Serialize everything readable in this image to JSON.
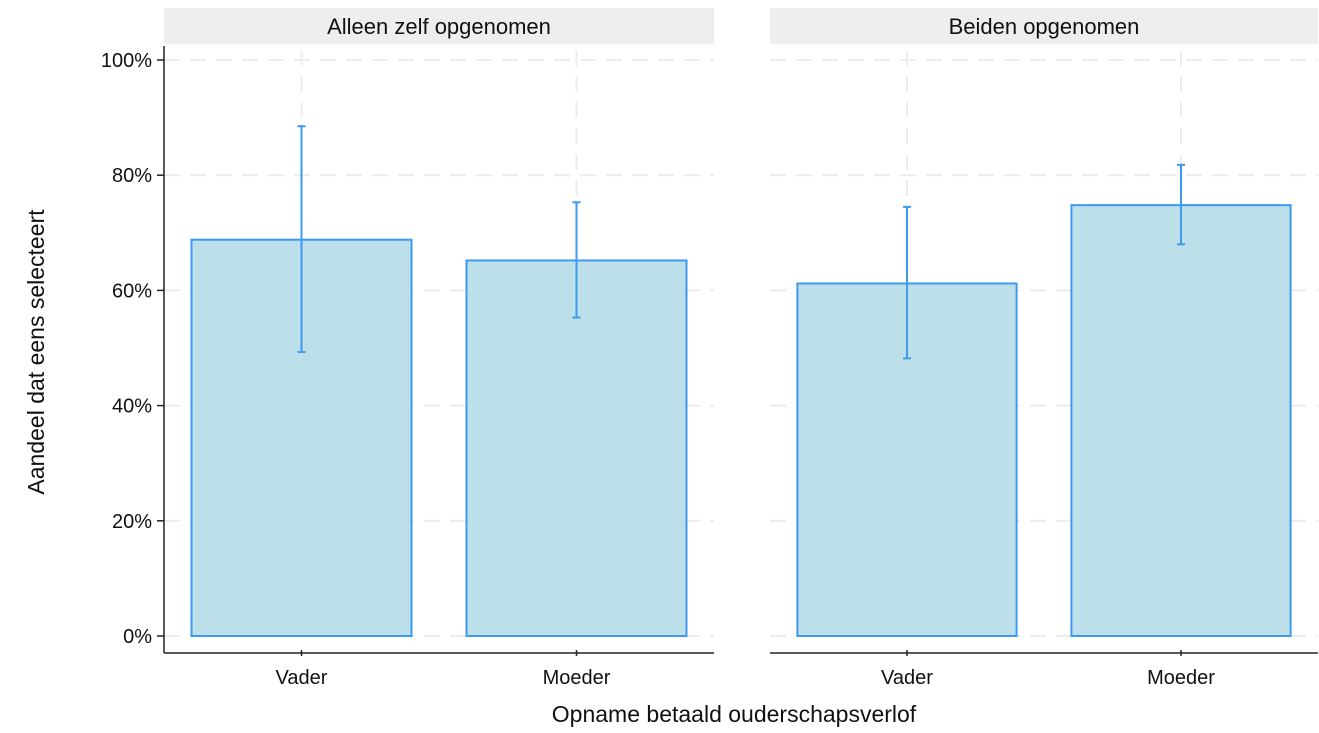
{
  "chart_data": {
    "type": "bar",
    "ylabel": "Aandeel dat eens selecteert",
    "xlabel": "Opname betaald ouderschapsverlof",
    "ylim": [
      0,
      100
    ],
    "y_ticks": [
      0,
      20,
      40,
      60,
      80,
      100
    ],
    "y_tick_labels": [
      "0%",
      "20%",
      "40%",
      "60%",
      "80%",
      "100%"
    ],
    "grid": true,
    "panels": [
      {
        "title": "Alleen zelf opgenomen",
        "categories": [
          "Vader",
          "Moeder"
        ],
        "values": [
          68.8,
          65.2
        ],
        "ci_lower": [
          49.3,
          55.3
        ],
        "ci_upper": [
          88.5,
          75.3
        ]
      },
      {
        "title": "Beiden opgenomen",
        "categories": [
          "Vader",
          "Moeder"
        ],
        "values": [
          61.2,
          74.8
        ],
        "ci_lower": [
          48.2,
          68.0
        ],
        "ci_upper": [
          74.5,
          81.8
        ]
      }
    ],
    "colors": {
      "bar_fill": "#bddfe9",
      "bar_stroke": "#3c9af0",
      "error_bar": "#3c9af0",
      "strip_bg": "#eeeeee",
      "grid": "#ececec",
      "axis": "#222222"
    }
  }
}
